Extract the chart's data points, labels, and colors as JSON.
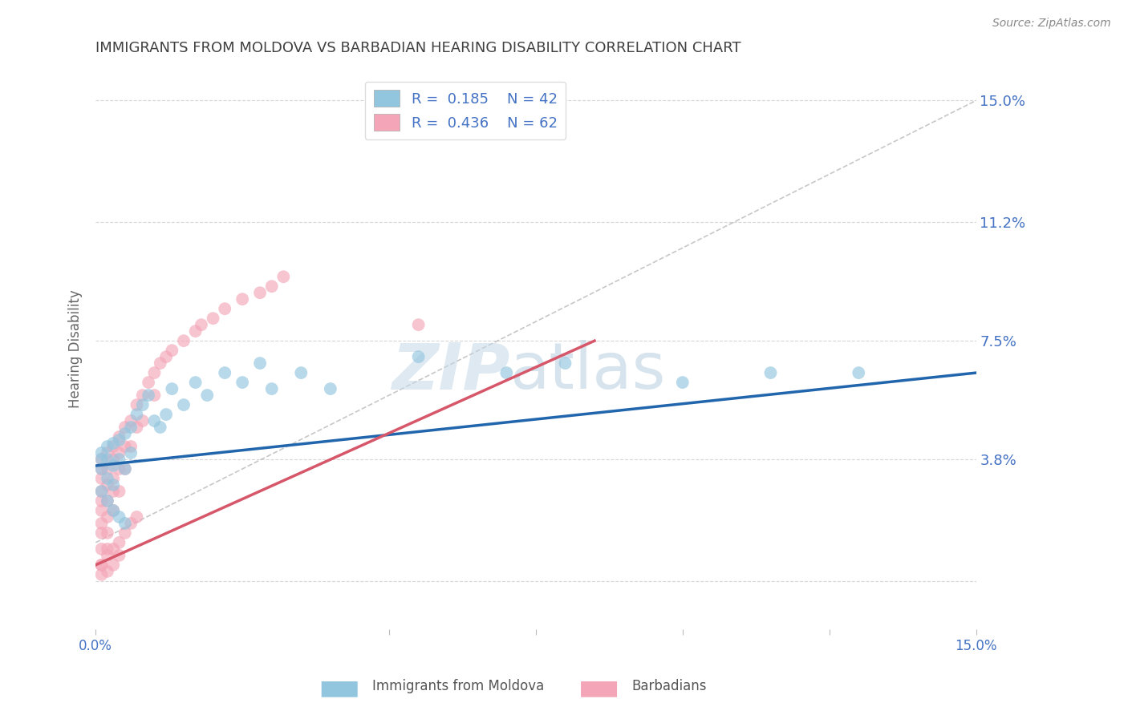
{
  "title": "IMMIGRANTS FROM MOLDOVA VS BARBADIAN HEARING DISABILITY CORRELATION CHART",
  "source": "Source: ZipAtlas.com",
  "ylabel": "Hearing Disability",
  "yticks": [
    0.0,
    0.038,
    0.075,
    0.112,
    0.15
  ],
  "ytick_labels": [
    "",
    "3.8%",
    "7.5%",
    "11.2%",
    "15.0%"
  ],
  "xlim": [
    0.0,
    0.15
  ],
  "ylim": [
    -0.015,
    0.16
  ],
  "legend1_label": "R =  0.185    N = 42",
  "legend2_label": "R =  0.436    N = 62",
  "series1_color": "#92c5de",
  "series2_color": "#f4a6b8",
  "line1_color": "#2166ac",
  "line2_color": "#d6566a",
  "watermark_zip": "ZIP",
  "watermark_atlas": "atlas",
  "series1_name": "Immigrants from Moldova",
  "series2_name": "Barbadians",
  "background_color": "#ffffff",
  "grid_color": "#cccccc",
  "axis_label_color": "#4472c4",
  "title_color": "#404040",
  "moldova_x": [
    0.001,
    0.001,
    0.001,
    0.002,
    0.002,
    0.002,
    0.003,
    0.003,
    0.003,
    0.004,
    0.004,
    0.005,
    0.005,
    0.006,
    0.006,
    0.007,
    0.008,
    0.009,
    0.01,
    0.011,
    0.012,
    0.013,
    0.015,
    0.017,
    0.019,
    0.022,
    0.025,
    0.028,
    0.03,
    0.035,
    0.001,
    0.002,
    0.003,
    0.004,
    0.005,
    0.07,
    0.08,
    0.1,
    0.115,
    0.13,
    0.055,
    0.04
  ],
  "moldova_y": [
    0.04,
    0.038,
    0.035,
    0.042,
    0.038,
    0.032,
    0.043,
    0.036,
    0.03,
    0.044,
    0.038,
    0.046,
    0.035,
    0.048,
    0.04,
    0.052,
    0.055,
    0.058,
    0.05,
    0.048,
    0.052,
    0.06,
    0.055,
    0.062,
    0.058,
    0.065,
    0.062,
    0.068,
    0.06,
    0.065,
    0.028,
    0.025,
    0.022,
    0.02,
    0.018,
    0.065,
    0.068,
    0.062,
    0.065,
    0.065,
    0.07,
    0.06
  ],
  "barbadian_x": [
    0.001,
    0.001,
    0.001,
    0.001,
    0.001,
    0.001,
    0.001,
    0.001,
    0.001,
    0.001,
    0.002,
    0.002,
    0.002,
    0.002,
    0.002,
    0.002,
    0.002,
    0.003,
    0.003,
    0.003,
    0.003,
    0.003,
    0.004,
    0.004,
    0.004,
    0.004,
    0.005,
    0.005,
    0.005,
    0.006,
    0.006,
    0.007,
    0.007,
    0.008,
    0.008,
    0.009,
    0.01,
    0.01,
    0.011,
    0.012,
    0.013,
    0.015,
    0.017,
    0.018,
    0.02,
    0.022,
    0.025,
    0.028,
    0.03,
    0.032,
    0.001,
    0.001,
    0.002,
    0.002,
    0.003,
    0.003,
    0.004,
    0.004,
    0.005,
    0.006,
    0.007,
    0.055
  ],
  "barbadian_y": [
    0.038,
    0.035,
    0.032,
    0.028,
    0.025,
    0.022,
    0.018,
    0.015,
    0.01,
    0.005,
    0.04,
    0.035,
    0.03,
    0.025,
    0.02,
    0.015,
    0.01,
    0.042,
    0.038,
    0.032,
    0.028,
    0.022,
    0.045,
    0.04,
    0.035,
    0.028,
    0.048,
    0.042,
    0.035,
    0.05,
    0.042,
    0.055,
    0.048,
    0.058,
    0.05,
    0.062,
    0.065,
    0.058,
    0.068,
    0.07,
    0.072,
    0.075,
    0.078,
    0.08,
    0.082,
    0.085,
    0.088,
    0.09,
    0.092,
    0.095,
    0.005,
    0.002,
    0.008,
    0.003,
    0.01,
    0.005,
    0.012,
    0.008,
    0.015,
    0.018,
    0.02,
    0.08
  ],
  "blue_line_x": [
    0.0,
    0.15
  ],
  "blue_line_y": [
    0.036,
    0.065
  ],
  "pink_line_x": [
    0.0,
    0.085
  ],
  "pink_line_y": [
    0.005,
    0.075
  ],
  "dash_line_x": [
    0.0,
    0.15
  ],
  "dash_line_y": [
    0.012,
    0.15
  ]
}
